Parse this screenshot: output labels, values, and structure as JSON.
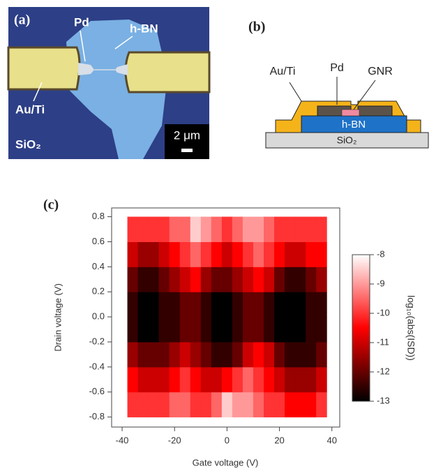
{
  "panel_a": {
    "label": "(a)",
    "pd": "Pd",
    "hbn": "h-BN",
    "electrode": "Au/Ti",
    "substrate": "SiO₂",
    "scale_bar": "2 μm"
  },
  "panel_b": {
    "label": "(b)",
    "electrode": "Au/Ti",
    "pd": "Pd",
    "gnr": "GNR",
    "hbn": "h-BN",
    "substrate": "SiO₂"
  },
  "chart_data": {
    "type": "heatmap",
    "label": "(c)",
    "x_label": "Gate voltage (V)",
    "y_label": "Drain voltage (V)",
    "colorbar_label": "log₁₀(abs(ISD))",
    "xlim": [
      -44,
      43
    ],
    "xticks": [
      -40,
      -20,
      0,
      20,
      40
    ],
    "ylim": [
      -0.88,
      0.87
    ],
    "yticks": [
      -0.8,
      -0.6,
      -0.4,
      -0.2,
      {
        "value": 0,
        "label": "0.0"
      },
      0.2,
      0.4,
      0.6,
      0.8
    ],
    "zlim": [
      -13,
      -8
    ],
    "zticks": [
      -13,
      -12,
      -11,
      -10,
      -9,
      -8
    ],
    "colormap": [
      "#000000",
      "#ff0000",
      "#ffffff"
    ],
    "x_bins": [
      -38,
      -34,
      -30,
      -26,
      -22,
      -18,
      -14,
      -10,
      -6,
      -2,
      2,
      6,
      10,
      14,
      18,
      22,
      26,
      30,
      34,
      38
    ],
    "y_bins": [
      -0.8,
      -0.6,
      -0.4,
      -0.2,
      0,
      0.2,
      0.4,
      0.6,
      0.8
    ],
    "z": [
      [
        -10,
        -10,
        -10,
        -10,
        -9.5,
        -9.5,
        -10,
        -10,
        -9.5,
        -8.5,
        -9,
        -9,
        -9.5,
        -10,
        -10,
        -10.5,
        -10.5,
        -10.5,
        -10
      ],
      [
        -10.5,
        -11,
        -11,
        -11,
        -10.5,
        -10,
        -10.5,
        -11,
        -11,
        -10.5,
        -10,
        -9.5,
        -10,
        -10.5,
        -11,
        -11.5,
        -11.5,
        -11.5,
        -11
      ],
      [
        -11.5,
        -12,
        -12,
        -12,
        -11.5,
        -11,
        -11.5,
        -12,
        -12.5,
        -12.5,
        -12,
        -11,
        -10.5,
        -11,
        -12,
        -12.5,
        -12.5,
        -12.5,
        -12
      ],
      [
        -12.5,
        -13,
        -13,
        -12.5,
        -12.5,
        -12,
        -12,
        -12.5,
        -13,
        -13,
        -12.5,
        -12,
        -12,
        -12.5,
        -13,
        -13,
        -13,
        -12.5,
        -12.5
      ],
      [
        -12.5,
        -13,
        -13,
        -12.5,
        -12.5,
        -12,
        -12,
        -12.5,
        -13,
        -13,
        -12.5,
        -12,
        -12,
        -12.5,
        -13,
        -13,
        -13,
        -12.5,
        -12.5
      ],
      [
        -12,
        -12.5,
        -12.5,
        -12,
        -11.5,
        -11,
        -10.5,
        -11.5,
        -12,
        -12,
        -11.5,
        -11,
        -10.5,
        -11,
        -12,
        -12.5,
        -12.5,
        -12,
        -11.5
      ],
      [
        -11,
        -11.5,
        -11.5,
        -11,
        -10.5,
        -10,
        -9.5,
        -10,
        -10.5,
        -11,
        -10.5,
        -10,
        -9.5,
        -10,
        -10.5,
        -11,
        -11,
        -10.5,
        -10.5
      ],
      [
        -10,
        -10,
        -10,
        -10,
        -9.5,
        -9.5,
        -8.5,
        -9,
        -9.5,
        -10,
        -9.5,
        -9,
        -9,
        -9.5,
        -10,
        -10,
        -10,
        -10,
        -10
      ]
    ]
  }
}
